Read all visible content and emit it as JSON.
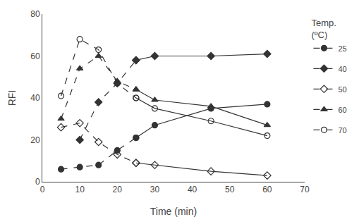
{
  "chart_data": {
    "type": "line",
    "x_label": "Time (min)",
    "y_label": "RFI",
    "legend_title": "Temp.\n(ºC)",
    "legend": "right",
    "grid": false,
    "xlim": [
      0,
      70
    ],
    "ylim": [
      0,
      80
    ],
    "xticks": [
      0,
      10,
      20,
      30,
      40,
      50,
      60,
      70
    ],
    "yticks": [
      0,
      20,
      40,
      60,
      80
    ],
    "series": [
      {
        "name": "25",
        "color": "#333333",
        "marker": "circle",
        "x": [
          5,
          10,
          15,
          20,
          25,
          30,
          45,
          60
        ],
        "values": [
          6,
          7,
          8,
          15,
          21,
          27,
          35,
          37
        ],
        "line_style": [
          "dashed",
          "dashed",
          "dashed",
          "dashed",
          "dashed",
          "solid",
          "solid",
          "solid"
        ]
      },
      {
        "name": "40",
        "color": "#333333",
        "marker": "diamond",
        "x": [
          10,
          15,
          20,
          25,
          30,
          45,
          60
        ],
        "values": [
          20,
          38,
          47,
          58,
          60,
          60,
          61
        ],
        "line_style": [
          "dashed",
          "dashed",
          "dashed",
          "dashed",
          "solid",
          "solid",
          "solid"
        ]
      },
      {
        "name": "50",
        "color": "#333333",
        "marker": "diamond-open",
        "x": [
          5,
          10,
          15,
          20,
          25,
          30,
          45,
          60
        ],
        "values": [
          26,
          28,
          19,
          13,
          9,
          8,
          5,
          3
        ],
        "line_style": [
          "dashed",
          "dashed",
          "dashed",
          "dashed",
          "dashed",
          "solid",
          "solid",
          "solid"
        ]
      },
      {
        "name": "60",
        "color": "#333333",
        "marker": "triangle-up",
        "x": [
          5,
          10,
          15,
          20,
          25,
          30,
          45,
          60
        ],
        "values": [
          30,
          54,
          60,
          48,
          44,
          39,
          36,
          27
        ],
        "line_style": [
          "dashed",
          "dashed",
          "dashed",
          "dashed",
          "dashed",
          "solid",
          "solid",
          "solid"
        ]
      },
      {
        "name": "70",
        "color": "#333333",
        "marker": "circle-open",
        "x": [
          5,
          10,
          15,
          20,
          25,
          30,
          45,
          60
        ],
        "values": [
          41,
          68,
          63,
          47,
          40,
          35,
          29,
          22
        ],
        "line_style": [
          "dashed",
          "dashed",
          "dashed",
          "dashed",
          "dashed",
          "solid",
          "solid",
          "solid"
        ]
      }
    ]
  }
}
